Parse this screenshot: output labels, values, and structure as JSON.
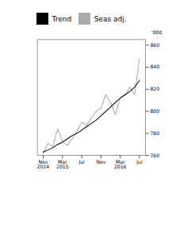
{
  "chart_data": {
    "type": "line",
    "categories": [
      "Nov\n2014",
      null,
      null,
      null,
      "Mar\n2015",
      null,
      null,
      null,
      "Jul",
      null,
      null,
      null,
      "Nov",
      null,
      null,
      null,
      "Mar\n2016",
      null,
      null,
      null,
      "Jul"
    ],
    "series": [
      {
        "name": "Trend",
        "color": "#000000",
        "values": [
          763,
          765,
          767,
          770,
          772,
          775,
          778,
          780,
          783,
          786,
          789,
          792,
          796,
          800,
          804,
          808,
          812,
          815,
          818,
          822,
          828
        ]
      },
      {
        "name": "Seas adj.",
        "color": "#aaaaaa",
        "values": [
          762,
          771,
          768,
          784,
          773,
          769,
          775,
          782,
          790,
          787,
          794,
          800,
          803,
          815,
          808,
          797,
          812,
          815,
          822,
          815,
          848
        ]
      }
    ],
    "ylabel": "'000",
    "ylim": [
      760,
      865
    ],
    "yticks": [
      760,
      780,
      800,
      820,
      840,
      860
    ],
    "grid": false,
    "legend": "upper left"
  }
}
